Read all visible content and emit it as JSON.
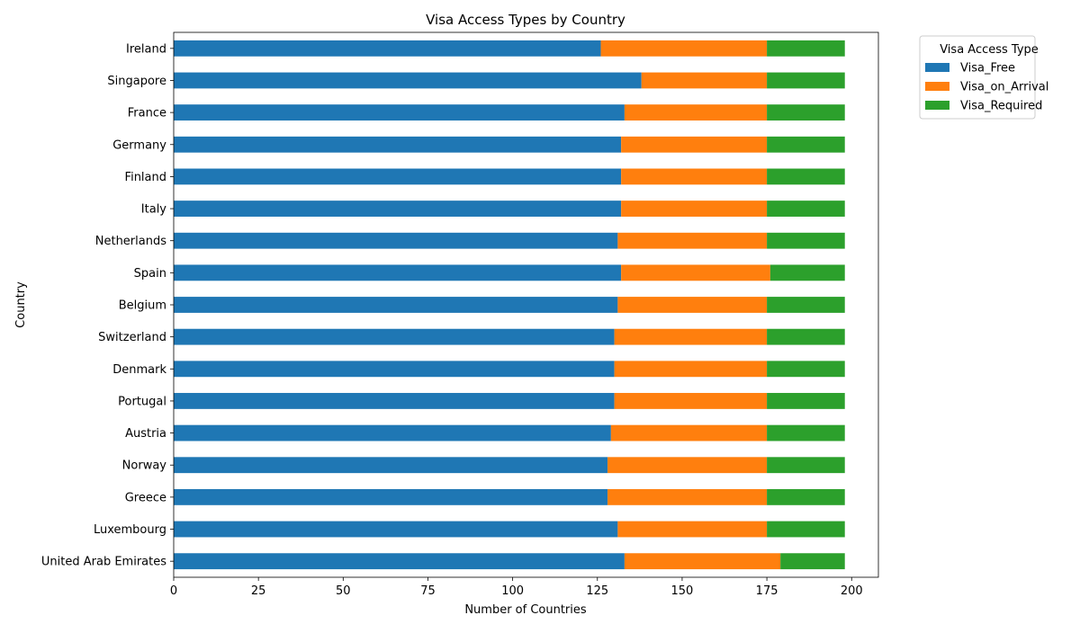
{
  "chart_data": {
    "type": "bar",
    "orientation": "horizontal",
    "stacked": true,
    "title": "Visa Access Types by Country",
    "xlabel": "Number of Countries",
    "ylabel": "Country",
    "xlim": [
      0,
      207.9
    ],
    "xticks": [
      0,
      25,
      50,
      75,
      100,
      125,
      150,
      175,
      200
    ],
    "grid": false,
    "legend": {
      "title": "Visa Access Type",
      "placement": "outside-top-right"
    },
    "categories": [
      "Ireland",
      "Singapore",
      "France",
      "Germany",
      "Finland",
      "Italy",
      "Netherlands",
      "Spain",
      "Belgium",
      "Switzerland",
      "Denmark",
      "Portugal",
      "Austria",
      "Norway",
      "Greece",
      "Luxembourg",
      "United Arab Emirates"
    ],
    "series": [
      {
        "name": "Visa_Free",
        "color": "#1f77b4",
        "values": [
          126,
          138,
          133,
          132,
          132,
          132,
          131,
          132,
          131,
          130,
          130,
          130,
          129,
          128,
          128,
          131,
          133
        ]
      },
      {
        "name": "Visa_on_Arrival",
        "color": "#ff7f0e",
        "values": [
          49,
          37,
          42,
          43,
          43,
          43,
          44,
          44,
          44,
          45,
          45,
          45,
          46,
          47,
          47,
          44,
          46
        ]
      },
      {
        "name": "Visa_Required",
        "color": "#2ca02c",
        "values": [
          23,
          23,
          23,
          23,
          23,
          23,
          23,
          22,
          23,
          23,
          23,
          23,
          23,
          23,
          23,
          23,
          19
        ]
      }
    ]
  }
}
